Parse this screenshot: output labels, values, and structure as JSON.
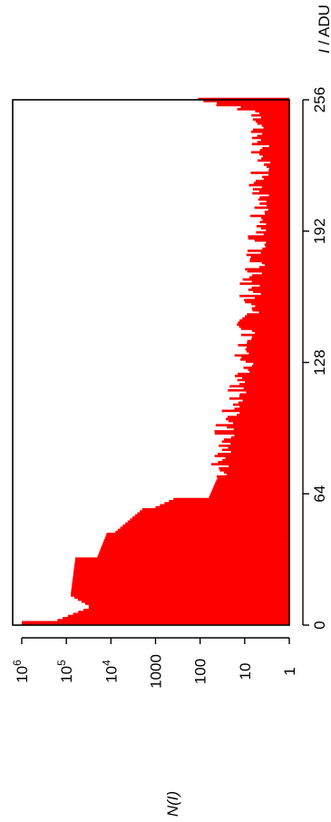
{
  "chart_data": {
    "type": "bar",
    "orientation": "rotated-90",
    "xlabel_italic": "I",
    "xlabel_rest": " / ADU",
    "ylabel_italic": "N(I)",
    "ylabel_rest": "",
    "xlim": [
      0,
      256
    ],
    "ylog": true,
    "ylim": [
      1,
      1000000
    ],
    "grid": false,
    "bar_color": "#ff0000",
    "x_ticks": [
      {
        "value": 0,
        "label": "0"
      },
      {
        "value": 64,
        "label": "64"
      },
      {
        "value": 128,
        "label": "128"
      },
      {
        "value": 192,
        "label": "192"
      },
      {
        "value": 256,
        "label": "256"
      }
    ],
    "y_ticks": [
      {
        "value": 1000000,
        "base": "10",
        "exp": "6"
      },
      {
        "value": 100000,
        "base": "10",
        "exp": "5"
      },
      {
        "value": 10000,
        "base": "10",
        "exp": "4"
      },
      {
        "value": 1000,
        "base": "1000",
        "exp": ""
      },
      {
        "value": 100,
        "base": "100",
        "exp": ""
      },
      {
        "value": 10,
        "base": "10",
        "exp": ""
      },
      {
        "value": 1,
        "base": "1",
        "exp": ""
      }
    ],
    "histogram_segments": [
      {
        "x": [
          0,
          1
        ],
        "log_range": [
          6.0,
          6.0
        ]
      },
      {
        "x": [
          2,
          8
        ],
        "log_range": [
          5.2,
          4.5
        ]
      },
      {
        "x": [
          9,
          14
        ],
        "log_range": [
          4.5,
          4.9
        ]
      },
      {
        "x": [
          15,
          32
        ],
        "log_range": [
          4.9,
          4.8
        ]
      },
      {
        "x": [
          33,
          44
        ],
        "log_range": [
          4.3,
          4.1
        ]
      },
      {
        "x": [
          45,
          56
        ],
        "log_range": [
          3.9,
          3.3
        ]
      },
      {
        "x": [
          57,
          61
        ],
        "log_range": [
          3.0,
          2.6
        ]
      },
      {
        "x": [
          62,
          72
        ],
        "log_range": [
          1.8,
          1.6
        ]
      },
      {
        "x": [
          73,
          100
        ],
        "log_range": [
          1.6,
          1.4
        ]
      },
      {
        "x": [
          101,
          130
        ],
        "log_range": [
          1.3,
          1.0
        ]
      },
      {
        "x": [
          131,
          170
        ],
        "log_range": [
          1.0,
          0.85
        ]
      },
      {
        "x": [
          171,
          250
        ],
        "log_range": [
          0.8,
          0.6
        ]
      },
      {
        "x": [
          251,
          253
        ],
        "log_range": [
          1.2,
          1.4
        ]
      },
      {
        "x": [
          254,
          256
        ],
        "log_range": [
          1.6,
          2.1
        ]
      }
    ]
  }
}
